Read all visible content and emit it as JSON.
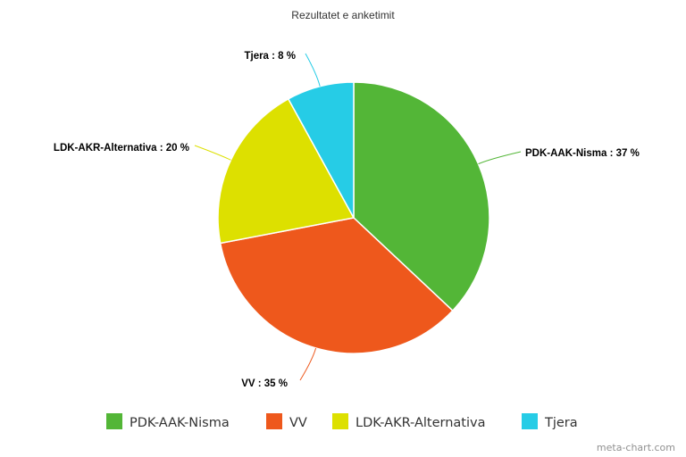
{
  "chart_data": {
    "type": "pie",
    "title": "Rezultatet e anketimit",
    "categories": [
      "PDK-AAK-Nisma",
      "VV",
      "LDK-AKR-Alternativa",
      "Tjera"
    ],
    "values": [
      37,
      35,
      20,
      8
    ],
    "labels": [
      "PDK-AAK-Nisma : 37 %",
      "VV : 35 %",
      "LDK-AKR-Alternativa : 20 %",
      "Tjera : 8 %"
    ],
    "colors": [
      "#53b637",
      "#ee581c",
      "#dde000",
      "#26cce6"
    ],
    "legend": {
      "position": "bottom",
      "items": [
        "PDK-AAK-Nisma",
        "VV",
        "LDK-AKR-Alternativa",
        "Tjera"
      ]
    }
  },
  "credit": "meta-chart.com"
}
